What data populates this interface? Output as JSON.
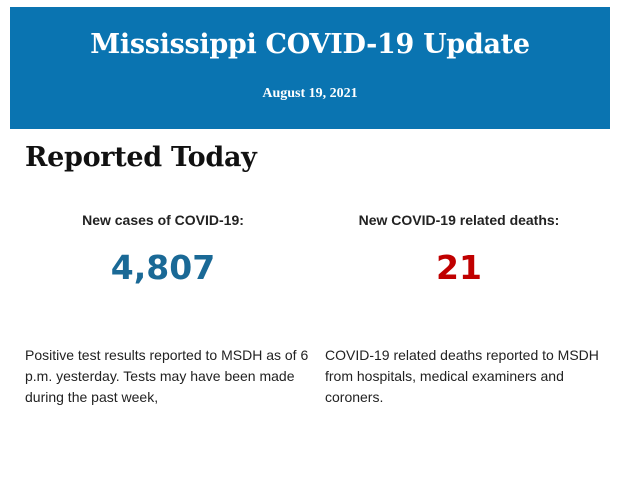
{
  "header": {
    "title": "Mississippi COVID-19 Update",
    "date": "August 19, 2021"
  },
  "section_title": "Reported Today",
  "cases": {
    "label": "New cases of COVID-19:",
    "value": "4,807",
    "color": "#1a6996",
    "description": "Positive test results reported to MSDH as of 6 p.m. yesterday. Tests may have been made during the past week,"
  },
  "deaths": {
    "label": "New COVID-19 related deaths:",
    "value": "21",
    "color": "#c00000",
    "description": "COVID-19 related deaths reported to MSDH from hospitals, medical examiners and coroners."
  }
}
